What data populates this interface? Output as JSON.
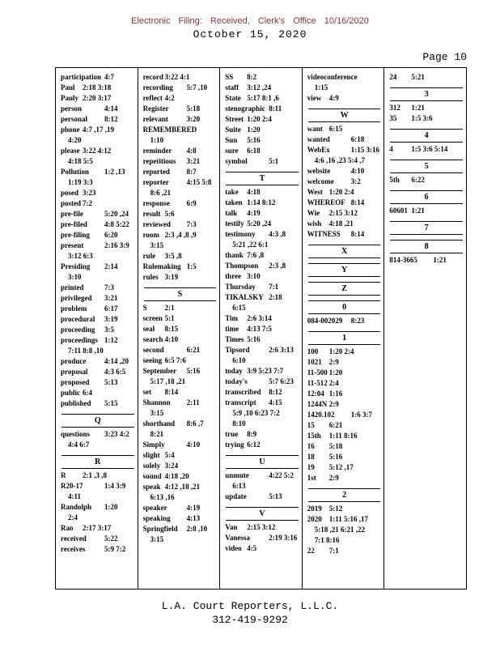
{
  "header": {
    "filing_line": "Electronic Filing: Received, Clerk's Office 10/16/2020",
    "date_line": "October 15, 2020",
    "page_label": "Page 10"
  },
  "colors": {
    "filing_text": "#8b3232",
    "body_text": "#000000"
  },
  "footer": {
    "company": "L.A. Court Reporters, L.L.C.",
    "phone": "312-419-9292"
  },
  "index": {
    "columns": [
      {
        "items": [
          {
            "t": "e",
            "w": "participation",
            "r": "4:7"
          },
          {
            "t": "e",
            "w": "Paul",
            "r": "2:18 3:18"
          },
          {
            "t": "e",
            "w": "Pauly",
            "r": "2:20 3:17"
          },
          {
            "t": "e",
            "w": "person",
            "r": "4:14"
          },
          {
            "t": "e",
            "w": "personal",
            "r": "8:12"
          },
          {
            "t": "e",
            "w": "phone",
            "r": "4:7 ,17 ,19",
            "c": [
              "4:20"
            ]
          },
          {
            "t": "e",
            "w": "please",
            "r": "3:22 4:12",
            "c": [
              "4:18 5:5"
            ]
          },
          {
            "t": "e",
            "w": "Pollution",
            "r": "1:2 ,13",
            "c": [
              "1:19 3:3"
            ]
          },
          {
            "t": "e",
            "w": "posed",
            "r": "3:23"
          },
          {
            "t": "e",
            "w": "posted",
            "r": "7:2"
          },
          {
            "t": "e",
            "w": "pre-file",
            "r": "5:20 ,24"
          },
          {
            "t": "e",
            "w": "pre-filed",
            "r": "4:8 5:22"
          },
          {
            "t": "e",
            "w": "pre-filing",
            "r": "6:20"
          },
          {
            "t": "e",
            "w": "present",
            "r": "2:16 3:9",
            "c": [
              "3:12 6:3"
            ]
          },
          {
            "t": "e",
            "w": "Presiding",
            "r": "2:14",
            "c": [
              "3:10"
            ]
          },
          {
            "t": "e",
            "w": "printed",
            "r": "7:3"
          },
          {
            "t": "e",
            "w": "privileged",
            "r": "3:21"
          },
          {
            "t": "e",
            "w": "problem",
            "r": "6:17"
          },
          {
            "t": "e",
            "w": "procedural",
            "r": "3:19"
          },
          {
            "t": "e",
            "w": "proceeding",
            "r": "3:5"
          },
          {
            "t": "e",
            "w": "proceedings",
            "r": "1:12",
            "c": [
              "7:11 8:8 ,10"
            ]
          },
          {
            "t": "e",
            "w": "produce",
            "r": "4:14 ,20"
          },
          {
            "t": "e",
            "w": "proposal",
            "r": "4:3 6:5"
          },
          {
            "t": "e",
            "w": "proposed",
            "r": "5:13"
          },
          {
            "t": "e",
            "w": "public",
            "r": "6:4"
          },
          {
            "t": "e",
            "w": "published",
            "r": "5:15"
          },
          {
            "t": "s",
            "l": "Q"
          },
          {
            "t": "e",
            "w": "questions",
            "r": "3:23 4:2",
            "c": [
              "4:4 6:7"
            ]
          },
          {
            "t": "s",
            "l": "R"
          },
          {
            "t": "e",
            "w": "R",
            "r": "2:1 ,3 ,8"
          },
          {
            "t": "e",
            "w": "R20-17",
            "r": "1:4 3:9",
            "c": [
              "4:11"
            ]
          },
          {
            "t": "e",
            "w": "Randolph",
            "r": "1:20",
            "c": [
              "2:4"
            ]
          },
          {
            "t": "e",
            "w": "Rao",
            "r": "2:17 3:17"
          },
          {
            "t": "e",
            "w": "received",
            "r": "5:22"
          },
          {
            "t": "e",
            "w": "receives",
            "r": "5:9 7:2"
          }
        ]
      },
      {
        "items": [
          {
            "t": "e",
            "w": "record",
            "r": "3:22 4:1"
          },
          {
            "t": "e",
            "w": "recording",
            "r": "5:7 ,10"
          },
          {
            "t": "e",
            "w": "reflect",
            "r": "4:2"
          },
          {
            "t": "e",
            "w": "Register",
            "r": "5:18"
          },
          {
            "t": "e",
            "w": "relevant",
            "r": "3:20"
          },
          {
            "t": "e",
            "w": "REMEMBERED",
            "r": "",
            "c": [
              "1:10"
            ]
          },
          {
            "t": "e",
            "w": "reminder",
            "r": "4:8"
          },
          {
            "t": "e",
            "w": "repetitious",
            "r": "3:21"
          },
          {
            "t": "e",
            "w": "reported",
            "r": "8:7"
          },
          {
            "t": "e",
            "w": "reporter",
            "r": "4:15 5:8",
            "c": [
              "8:6 ,21"
            ]
          },
          {
            "t": "e",
            "w": "response",
            "r": "6:9"
          },
          {
            "t": "e",
            "w": "result",
            "r": "5:6"
          },
          {
            "t": "e",
            "w": "reviewed",
            "r": "7:3"
          },
          {
            "t": "e",
            "w": "room",
            "r": "2:3 ,4 ,8 ,9",
            "c": [
              "3:15"
            ]
          },
          {
            "t": "e",
            "w": "rule",
            "r": "3:5 ,8"
          },
          {
            "t": "e",
            "w": "Rulemaking",
            "r": "1:5"
          },
          {
            "t": "e",
            "w": "rules",
            "r": "3:19"
          },
          {
            "t": "s",
            "l": "S"
          },
          {
            "t": "e",
            "w": "S",
            "r": "2:1"
          },
          {
            "t": "e",
            "w": "screen",
            "r": "5:1"
          },
          {
            "t": "e",
            "w": "seal",
            "r": "8:15"
          },
          {
            "t": "e",
            "w": "search",
            "r": "4:10"
          },
          {
            "t": "e",
            "w": "second",
            "r": "6:21"
          },
          {
            "t": "e",
            "w": "seeing",
            "r": "6:5 7:6"
          },
          {
            "t": "e",
            "w": "September",
            "r": "5:16",
            "c": [
              "5:17 ,18 ,21"
            ]
          },
          {
            "t": "e",
            "w": "set",
            "r": "8:14"
          },
          {
            "t": "e",
            "w": "Shannon",
            "r": "2:11",
            "c": [
              "3:15"
            ]
          },
          {
            "t": "e",
            "w": "shorthand",
            "r": "8:6 ,7",
            "c": [
              "8:21"
            ]
          },
          {
            "t": "e",
            "w": "Simply",
            "r": "4:10"
          },
          {
            "t": "e",
            "w": "slight",
            "r": "5:4"
          },
          {
            "t": "e",
            "w": "solely",
            "r": "3:24"
          },
          {
            "t": "e",
            "w": "sound",
            "r": "4:18 ,20"
          },
          {
            "t": "e",
            "w": "speak",
            "r": "4:12 ,18 ,21",
            "c": [
              "6:13 ,16"
            ]
          },
          {
            "t": "e",
            "w": "speaker",
            "r": "4:19"
          },
          {
            "t": "e",
            "w": "speaking",
            "r": "4:13"
          },
          {
            "t": "e",
            "w": "Springfield",
            "r": "2:8 ,10",
            "c": [
              "3:15"
            ]
          }
        ]
      },
      {
        "items": [
          {
            "t": "e",
            "w": "SS",
            "r": "8:2"
          },
          {
            "t": "e",
            "w": "staff",
            "r": "3:12 ,24"
          },
          {
            "t": "e",
            "w": "State",
            "r": "5:17 8:1 ,6"
          },
          {
            "t": "e",
            "w": "stenographic",
            "r": "8:11"
          },
          {
            "t": "e",
            "w": "Street",
            "r": "1:20 2:4"
          },
          {
            "t": "e",
            "w": "Suite",
            "r": "1:20"
          },
          {
            "t": "e",
            "w": "Sun",
            "r": "5:16"
          },
          {
            "t": "e",
            "w": "sure",
            "r": "6:18"
          },
          {
            "t": "e",
            "w": "symbol",
            "r": "5:1"
          },
          {
            "t": "s",
            "l": "T"
          },
          {
            "t": "e",
            "w": "take",
            "r": "4:18"
          },
          {
            "t": "e",
            "w": "taken",
            "r": "1:14 8:12"
          },
          {
            "t": "e",
            "w": "talk",
            "r": "4:19"
          },
          {
            "t": "e",
            "w": "testify",
            "r": "5:20 ,24"
          },
          {
            "t": "e",
            "w": "testimony",
            "r": "4:3 ,8",
            "c": [
              "5:21 ,22 6:1"
            ]
          },
          {
            "t": "e",
            "w": "thank",
            "r": "7:6 ,8"
          },
          {
            "t": "e",
            "w": "Thompson",
            "r": "2:3 ,8"
          },
          {
            "t": "e",
            "w": "three",
            "r": "3:10"
          },
          {
            "t": "e",
            "w": "Thursday",
            "r": "7:1"
          },
          {
            "t": "e",
            "w": "TIKALSKY",
            "r": "2:18",
            "c": [
              "6:15"
            ]
          },
          {
            "t": "e",
            "w": "Tim",
            "r": "2:6 3:14"
          },
          {
            "t": "e",
            "w": "time",
            "r": "4:13 7:5"
          },
          {
            "t": "e",
            "w": "Times",
            "r": "5:16"
          },
          {
            "t": "e",
            "w": "Tipsord",
            "r": "2:6 3:13",
            "c": [
              "6:10"
            ]
          },
          {
            "t": "e",
            "w": "today",
            "r": "3:9 5:23 7:7"
          },
          {
            "t": "e",
            "w": "today's",
            "r": "5:7 6:23"
          },
          {
            "t": "e",
            "w": "transcribed",
            "r": "8:12"
          },
          {
            "t": "e",
            "w": "transcript",
            "r": "4:15",
            "c": [
              "5:9 ,10 6:23 7:2",
              "8:10"
            ]
          },
          {
            "t": "e",
            "w": "true",
            "r": "8:9"
          },
          {
            "t": "e",
            "w": "trying",
            "r": "6:12"
          },
          {
            "t": "s",
            "l": "U"
          },
          {
            "t": "e",
            "w": "unmute",
            "r": "4:22 5:2",
            "c": [
              "6:13"
            ]
          },
          {
            "t": "e",
            "w": "update",
            "r": "5:13"
          },
          {
            "t": "s",
            "l": "V"
          },
          {
            "t": "e",
            "w": "Van",
            "r": "2:15 3:12"
          },
          {
            "t": "e",
            "w": "Vanessa",
            "r": "2:19 3:16"
          },
          {
            "t": "e",
            "w": "video",
            "r": "4:5"
          }
        ]
      },
      {
        "items": [
          {
            "t": "e",
            "w": "videoconference",
            "r": "",
            "c": [
              "1:15"
            ]
          },
          {
            "t": "e",
            "w": "view",
            "r": "4:9"
          },
          {
            "t": "s",
            "l": "W"
          },
          {
            "t": "e",
            "w": "want",
            "r": "6:15"
          },
          {
            "t": "e",
            "w": "wanted",
            "r": "6:18"
          },
          {
            "t": "e",
            "w": "WebEx",
            "r": "1:15 3:16",
            "c": [
              "4:6 ,16 ,23 5:4 ,7"
            ]
          },
          {
            "t": "e",
            "w": "website",
            "r": "4:10"
          },
          {
            "t": "e",
            "w": "welcome",
            "r": "3:2"
          },
          {
            "t": "e",
            "w": "West",
            "r": "1:20 2:4"
          },
          {
            "t": "e",
            "w": "WHEREOF",
            "r": "8:14"
          },
          {
            "t": "e",
            "w": "Wie",
            "r": "2:15 3:12"
          },
          {
            "t": "e",
            "w": "wish",
            "r": "4:18 ,21"
          },
          {
            "t": "e",
            "w": "WITNESS",
            "r": "8:14"
          },
          {
            "t": "s",
            "l": "X"
          },
          {
            "t": "s",
            "l": "Y"
          },
          {
            "t": "s",
            "l": "Z"
          },
          {
            "t": "s",
            "l": "0"
          },
          {
            "t": "e",
            "w": "084-002029",
            "r": "8:23"
          },
          {
            "t": "s",
            "l": "1"
          },
          {
            "t": "e",
            "w": "100",
            "r": "1:20 2:4"
          },
          {
            "t": "e",
            "w": "1021",
            "r": "2:9"
          },
          {
            "t": "e",
            "w": "11-500",
            "r": "1:20"
          },
          {
            "t": "e",
            "w": "11-512",
            "r": "2:4"
          },
          {
            "t": "e",
            "w": "12:04",
            "r": "1:16"
          },
          {
            "t": "e",
            "w": "1244N",
            "r": "2:9"
          },
          {
            "t": "e",
            "w": "1420.102",
            "r": "1:6 3:7"
          },
          {
            "t": "e",
            "w": "15",
            "r": "6:21"
          },
          {
            "t": "e",
            "w": "15th",
            "r": "1:11 8:16"
          },
          {
            "t": "e",
            "w": "16",
            "r": "5:18"
          },
          {
            "t": "e",
            "w": "18",
            "r": "5:16"
          },
          {
            "t": "e",
            "w": "19",
            "r": "5:12 ,17"
          },
          {
            "t": "e",
            "w": "1st",
            "r": "2:9"
          },
          {
            "t": "s",
            "l": "2"
          },
          {
            "t": "e",
            "w": "2019",
            "r": "5:12"
          },
          {
            "t": "e",
            "w": "2020",
            "r": "1:11 5:16 ,17",
            "c": [
              "5:18 ,21 6:21 ,22",
              "7:1 8:16"
            ]
          },
          {
            "t": "e",
            "w": "22",
            "r": "7:1"
          }
        ]
      },
      {
        "items": [
          {
            "t": "e",
            "w": "24",
            "r": "5:21"
          },
          {
            "t": "s",
            "l": "3"
          },
          {
            "t": "e",
            "w": "312",
            "r": "1:21"
          },
          {
            "t": "e",
            "w": "35",
            "r": "1:5 3:6"
          },
          {
            "t": "s",
            "l": "4"
          },
          {
            "t": "e",
            "w": "4",
            "r": "1:5 3:6 5:14"
          },
          {
            "t": "s",
            "l": "5"
          },
          {
            "t": "e",
            "w": "5th",
            "r": "6:22"
          },
          {
            "t": "s",
            "l": "6"
          },
          {
            "t": "e",
            "w": "60601",
            "r": "1:21"
          },
          {
            "t": "s",
            "l": "7"
          },
          {
            "t": "s",
            "l": "8"
          },
          {
            "t": "e",
            "w": "814-3665",
            "r": "1:21"
          }
        ]
      }
    ]
  }
}
